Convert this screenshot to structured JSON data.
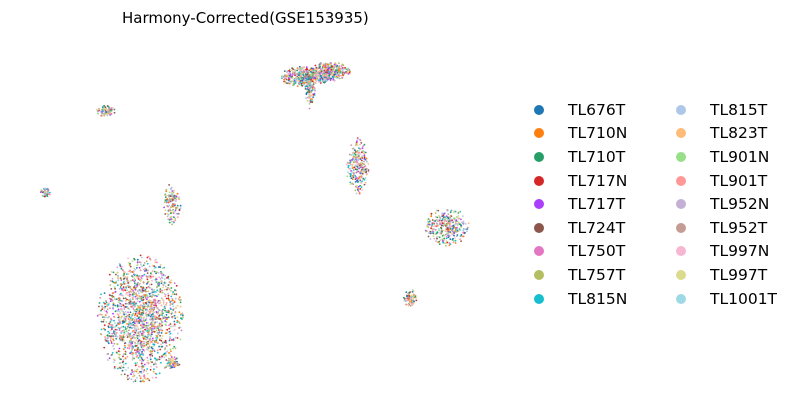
{
  "chart_data": {
    "type": "scatter",
    "title": "Harmony-Corrected(GSE153935)",
    "xlabel": "",
    "ylabel": "",
    "axes_visible": false,
    "grid": false,
    "legend_placement": "right",
    "legend_columns": 2,
    "series": [
      {
        "name": "TL676T",
        "color": "#1f77b4"
      },
      {
        "name": "TL710N",
        "color": "#ff7f0e"
      },
      {
        "name": "TL710T",
        "color": "#279e68"
      },
      {
        "name": "TL717N",
        "color": "#d62728"
      },
      {
        "name": "TL717T",
        "color": "#aa40fc"
      },
      {
        "name": "TL724T",
        "color": "#8c564b"
      },
      {
        "name": "TL750T",
        "color": "#e377c2"
      },
      {
        "name": "TL757T",
        "color": "#b5bd61"
      },
      {
        "name": "TL815N",
        "color": "#17becf"
      },
      {
        "name": "TL815T",
        "color": "#aec7e8"
      },
      {
        "name": "TL823T",
        "color": "#ffbb78"
      },
      {
        "name": "TL901N",
        "color": "#98df8a"
      },
      {
        "name": "TL901T",
        "color": "#ff9896"
      },
      {
        "name": "TL952N",
        "color": "#c5b0d5"
      },
      {
        "name": "TL952T",
        "color": "#c49c94"
      },
      {
        "name": "TL997N",
        "color": "#f7b6d2"
      },
      {
        "name": "TL997T",
        "color": "#dbdb8d"
      },
      {
        "name": "TL1001T",
        "color": "#9edae5"
      }
    ],
    "clusters": [
      {
        "x": -2.4,
        "y": 3.9,
        "spread_x": 0.55,
        "spread_y": 0.22,
        "count": 420
      },
      {
        "x": -1.4,
        "y": 4.1,
        "spread_x": 0.45,
        "spread_y": 0.2,
        "count": 360
      },
      {
        "x": -2.2,
        "y": 3.4,
        "spread_x": 0.12,
        "spread_y": 0.4,
        "count": 110
      },
      {
        "x": -10.4,
        "y": 2.6,
        "spread_x": 0.22,
        "spread_y": 0.12,
        "count": 90
      },
      {
        "x": -12.8,
        "y": -0.5,
        "spread_x": 0.12,
        "spread_y": 0.1,
        "count": 45
      },
      {
        "x": -0.3,
        "y": 0.5,
        "spread_x": 0.25,
        "spread_y": 0.6,
        "count": 260
      },
      {
        "x": -7.7,
        "y": -0.9,
        "spread_x": 0.2,
        "spread_y": 0.45,
        "count": 140
      },
      {
        "x": -9.0,
        "y": -5.3,
        "spread_x": 0.95,
        "spread_y": 1.35,
        "count": 1700
      },
      {
        "x": -7.7,
        "y": -7.0,
        "spread_x": 0.15,
        "spread_y": 0.15,
        "count": 60
      },
      {
        "x": 3.3,
        "y": -1.8,
        "spread_x": 0.5,
        "spread_y": 0.4,
        "count": 340
      },
      {
        "x": 1.8,
        "y": -4.5,
        "spread_x": 0.16,
        "spread_y": 0.18,
        "count": 80
      }
    ]
  }
}
